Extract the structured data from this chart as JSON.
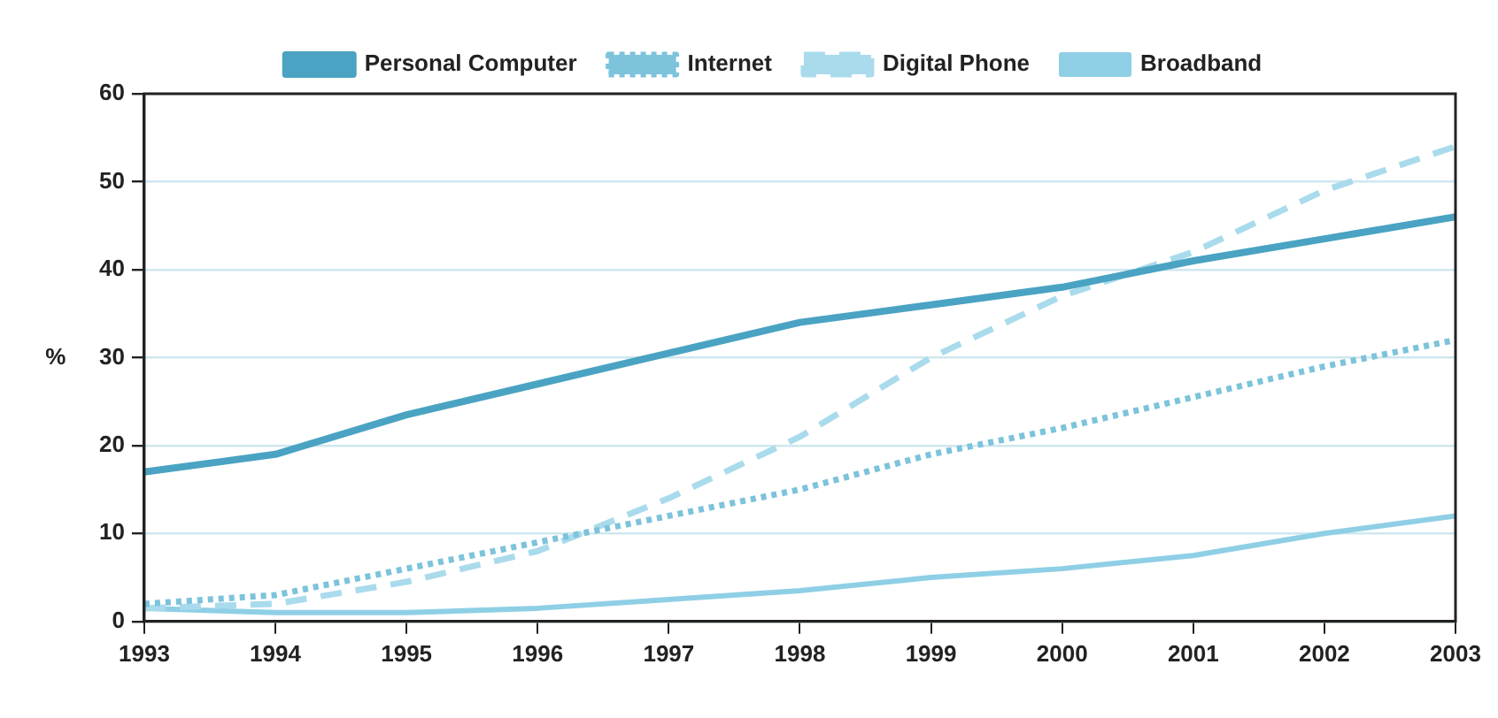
{
  "chart_data": {
    "type": "line",
    "ylabel": "%",
    "x": [
      1993,
      1994,
      1995,
      1996,
      1997,
      1998,
      1999,
      2000,
      2001,
      2002,
      2003
    ],
    "xlim": [
      1993,
      2003
    ],
    "xticks": [
      1993,
      1994,
      1995,
      1996,
      1997,
      1998,
      1999,
      2000,
      2001,
      2002,
      2003
    ],
    "ylim": [
      0,
      60
    ],
    "yticks": [
      0,
      10,
      20,
      30,
      40,
      50,
      60
    ],
    "grid": "y",
    "legend": "top",
    "marker": "none",
    "series": [
      {
        "name": "Personal Computer",
        "color": "#4aa3c2",
        "line_style": "solid",
        "values": [
          17,
          19,
          23.5,
          27,
          30.5,
          34,
          36,
          38,
          41,
          43.5,
          46
        ]
      },
      {
        "name": "Internet",
        "color": "#7cc3db",
        "line_style": "dotted",
        "values": [
          2,
          3,
          6,
          9,
          12,
          15,
          19,
          22,
          25.5,
          29,
          32
        ]
      },
      {
        "name": "Digital Phone",
        "color": "#a9dbec",
        "line_style": "dashed",
        "values": [
          1.5,
          2,
          4.5,
          8,
          14,
          21,
          30,
          37,
          42,
          49,
          54
        ]
      },
      {
        "name": "Broadband",
        "color": "#8fcfe6",
        "line_style": "solid",
        "values": [
          1.5,
          1,
          1,
          1.5,
          2.5,
          3.5,
          5,
          6,
          7.5,
          10,
          12
        ]
      }
    ]
  }
}
